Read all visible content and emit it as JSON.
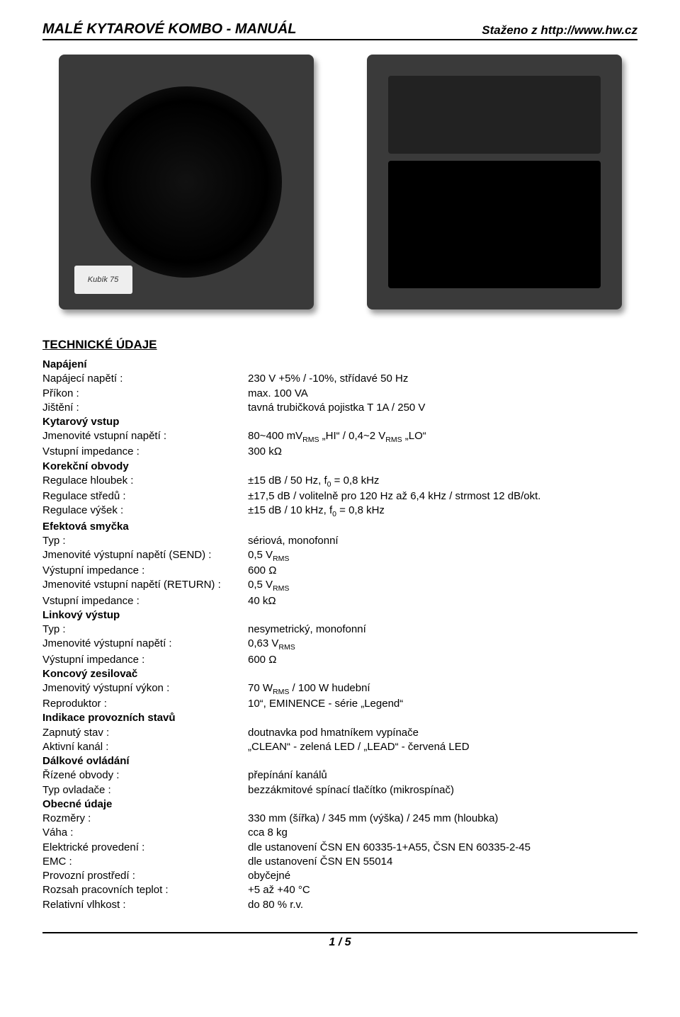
{
  "header": {
    "left": "MALÉ KYTAROVÉ KOMBO - MANUÁL",
    "right": "Staženo z http://www.hw.cz"
  },
  "sectionTitle": "TECHNICKÉ ÚDAJE",
  "images": {
    "frontPlate": "Kubík 75"
  },
  "specs": [
    {
      "type": "group",
      "label": "Napájení"
    },
    {
      "type": "row",
      "label": "Napájecí napětí :",
      "value": "230 V +5% / -10%, střídavé 50 Hz"
    },
    {
      "type": "row",
      "label": "Příkon :",
      "value": "max. 100 VA"
    },
    {
      "type": "row",
      "label": "Jištění :",
      "value": "tavná trubičková pojistka T 1A / 250 V"
    },
    {
      "type": "group",
      "label": "Kytarový vstup"
    },
    {
      "type": "row",
      "label": "Jmenovité vstupní napětí :",
      "value": "80~400 mV<sub>RMS</sub> „HI“ / 0,4~2 V<sub>RMS</sub> „LO“"
    },
    {
      "type": "row",
      "label": "Vstupní impedance :",
      "value": "300 kΩ"
    },
    {
      "type": "group",
      "label": "Korekční obvody"
    },
    {
      "type": "row",
      "label": "Regulace hloubek :",
      "value": "±15 dB / 50 Hz, f<sub>0</sub> = 0,8 kHz"
    },
    {
      "type": "row",
      "label": "Regulace středů :",
      "value": "±17,5 dB / volitelně pro 120 Hz až 6,4 kHz / strmost 12 dB/okt."
    },
    {
      "type": "row",
      "label": "Regulace výšek :",
      "value": "±15 dB / 10 kHz, f<sub>0</sub> = 0,8 kHz"
    },
    {
      "type": "group",
      "label": "Efektová smyčka"
    },
    {
      "type": "row",
      "label": "Typ :",
      "value": "sériová, monofonní"
    },
    {
      "type": "row",
      "label": "Jmenovité výstupní napětí (SEND) :",
      "value": "0,5 V<sub>RMS</sub>"
    },
    {
      "type": "row",
      "label": "Výstupní impedance :",
      "value": "600 Ω"
    },
    {
      "type": "row",
      "label": "Jmenovité vstupní napětí (RETURN) :",
      "value": "0,5 V<sub>RMS</sub>"
    },
    {
      "type": "row",
      "label": "Vstupní impedance :",
      "value": "40 kΩ"
    },
    {
      "type": "group",
      "label": "Linkový výstup"
    },
    {
      "type": "row",
      "label": "Typ :",
      "value": "nesymetrický, monofonní"
    },
    {
      "type": "row",
      "label": "Jmenovité výstupní napětí :",
      "value": "0,63 V<sub>RMS</sub>"
    },
    {
      "type": "row",
      "label": "Výstupní impedance :",
      "value": "600 Ω"
    },
    {
      "type": "group",
      "label": "Koncový zesilovač"
    },
    {
      "type": "row",
      "label": "Jmenovitý výstupní výkon :",
      "value": "70 W<sub>RMS</sub> / 100 W hudební"
    },
    {
      "type": "row",
      "label": "Reproduktor :",
      "value": "10“, EMINENCE - série „Legend“"
    },
    {
      "type": "group",
      "label": "Indikace provozních stavů"
    },
    {
      "type": "row",
      "label": "Zapnutý stav :",
      "value": "doutnavka pod hmatníkem vypínače"
    },
    {
      "type": "row",
      "label": "Aktivní kanál :",
      "value": "„CLEAN“ - zelená LED / „LEAD“ - červená LED"
    },
    {
      "type": "group",
      "label": "Dálkové ovládání"
    },
    {
      "type": "row",
      "label": "Řízené obvody :",
      "value": "přepínání kanálů"
    },
    {
      "type": "row",
      "label": "Typ ovladače :",
      "value": "bezzákmitové spínací tlačítko (mikrospínač)"
    },
    {
      "type": "group",
      "label": "Obecné údaje"
    },
    {
      "type": "row",
      "label": "Rozměry :",
      "value": "330 mm (šířka) / 345 mm (výška) / 245 mm (hloubka)"
    },
    {
      "type": "row",
      "label": "Váha :",
      "value": "cca 8 kg"
    },
    {
      "type": "row",
      "label": "Elektrické provedení :",
      "value": "dle ustanovení ČSN EN 60335-1+A55, ČSN EN 60335-2-45"
    },
    {
      "type": "row",
      "label": "EMC :",
      "value": "dle ustanovení ČSN EN 55014"
    },
    {
      "type": "row",
      "label": "Provozní prostředí :",
      "value": "obyčejné"
    },
    {
      "type": "row",
      "label": "Rozsah pracovních teplot :",
      "value": "+5 až +40 °C"
    },
    {
      "type": "row",
      "label": "Relativní vlhkost :",
      "value": "do 80 % r.v."
    }
  ],
  "footer": "1 / 5"
}
